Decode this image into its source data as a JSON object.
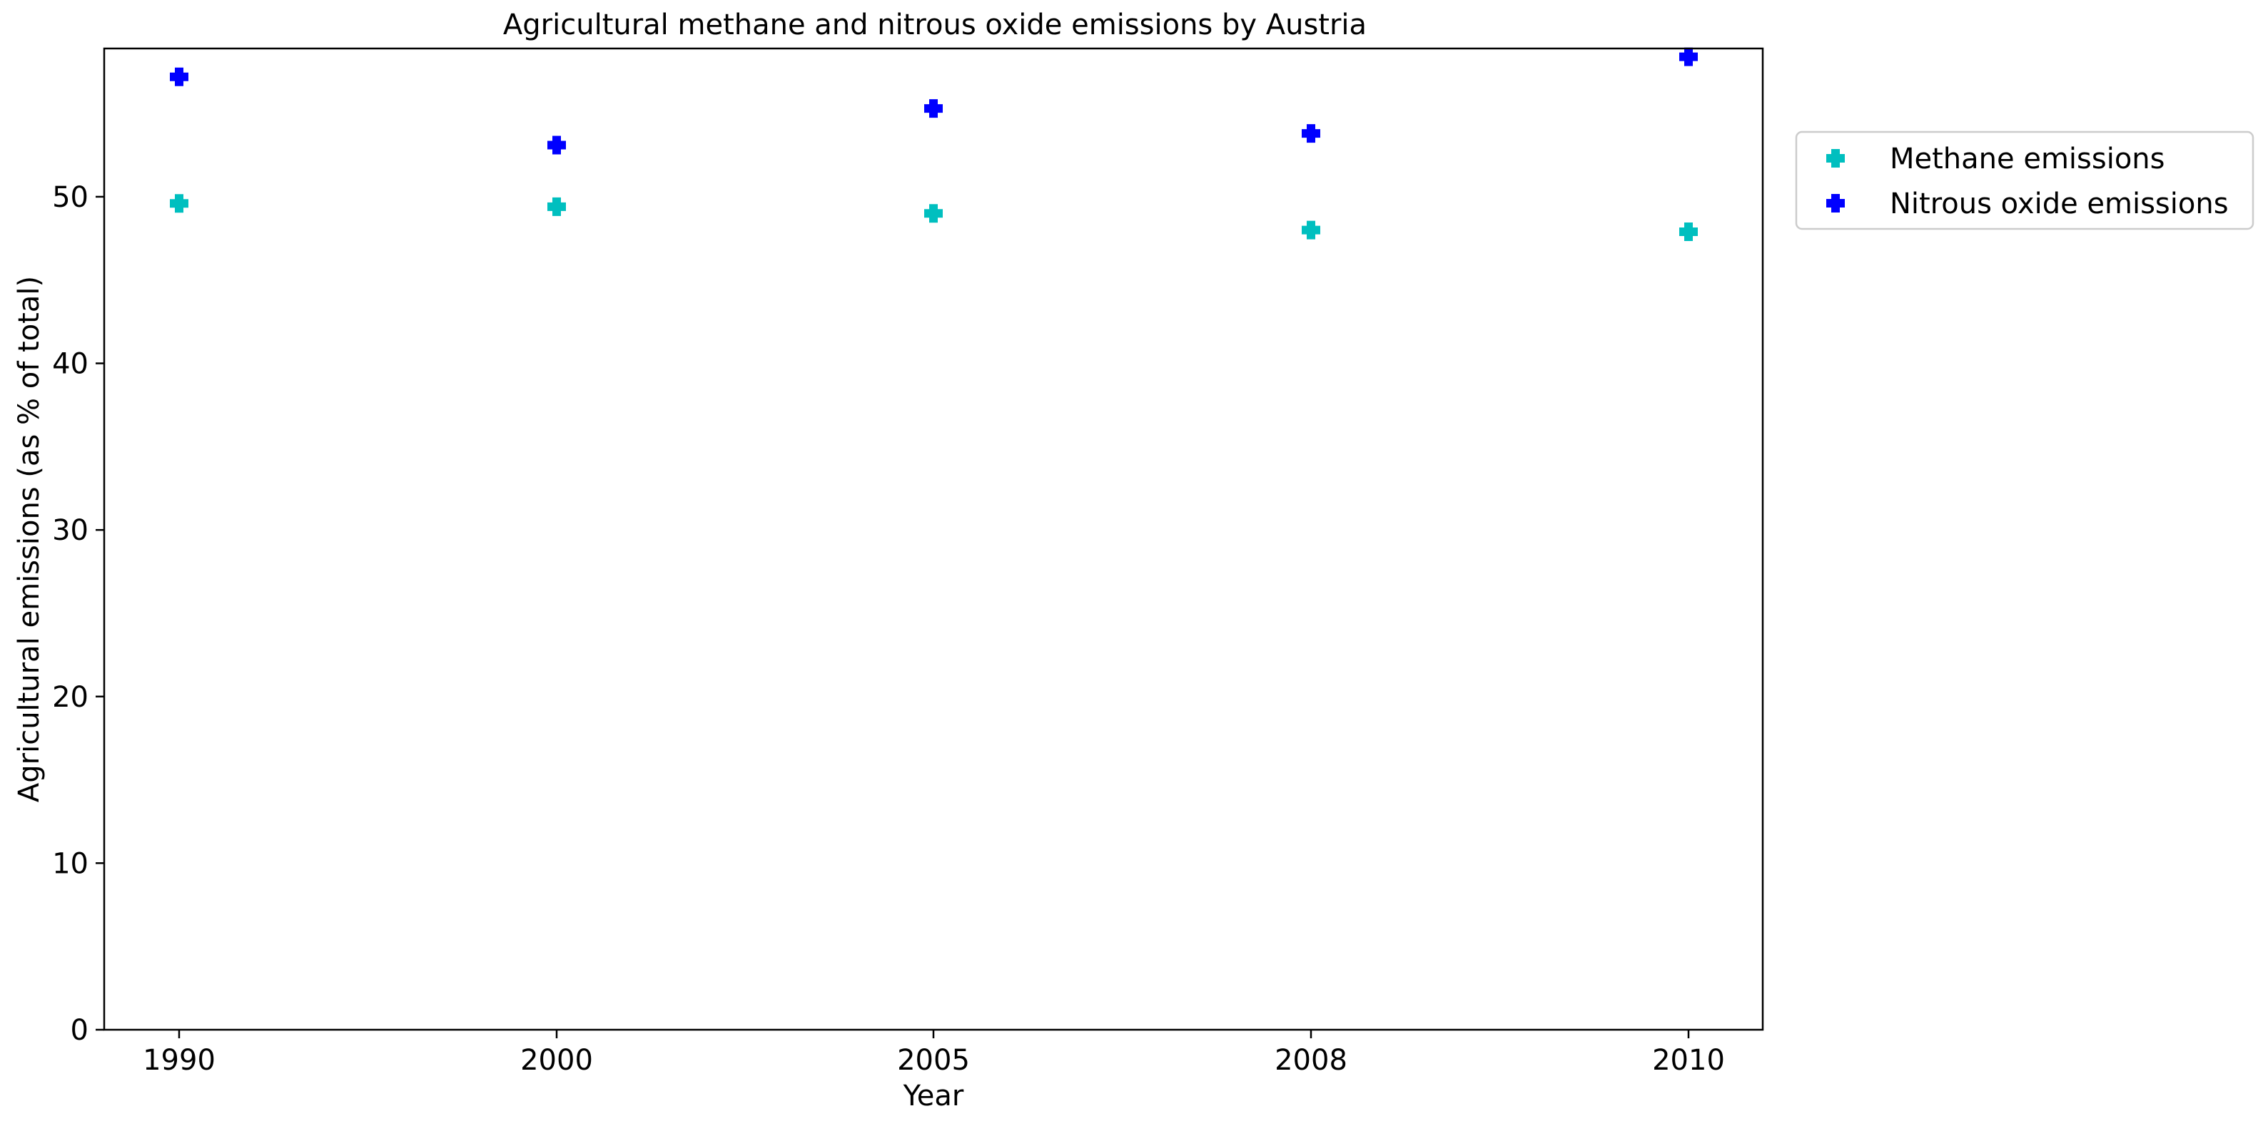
{
  "chart_data": {
    "type": "scatter",
    "title": "Agricultural methane and nitrous oxide emissions by Austria",
    "xlabel": "Year",
    "ylabel": "Agricultural emissions (as % of total)",
    "categories": [
      "1990",
      "2000",
      "2005",
      "2008",
      "2010"
    ],
    "ylim": [
      0,
      58.9
    ],
    "yticks": [
      0,
      10,
      20,
      30,
      40,
      50
    ],
    "grid": false,
    "legend_position": "outside-right-top",
    "marker": "plus-filled",
    "series": [
      {
        "name": "Methane emissions",
        "color": "#00BFBF",
        "values": [
          49.6,
          49.4,
          49.0,
          48.0,
          47.9
        ]
      },
      {
        "name": "Nitrous oxide emissions",
        "color": "#0000FF",
        "values": [
          57.2,
          53.1,
          55.3,
          53.8,
          58.4
        ]
      }
    ]
  }
}
